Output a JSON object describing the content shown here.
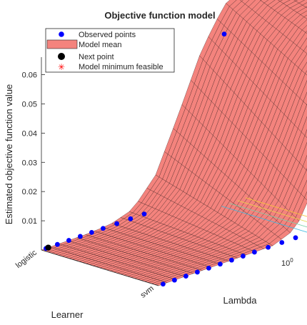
{
  "chart_data": {
    "type": "surface",
    "title": "Objective function model",
    "zlabel": "Estimated objective function value",
    "xlabel": "Learner",
    "ylabel": "Lambda",
    "ztick_values": [
      0.01,
      0.02,
      0.03,
      0.04,
      0.05,
      0.06
    ],
    "ztick_labels": [
      "0.01",
      "0.02",
      "0.03",
      "0.04",
      "0.05",
      "0.06"
    ],
    "zlim": [
      0,
      0.066
    ],
    "learner_categories": [
      "logistic",
      "svm"
    ],
    "lambda_tick": {
      "base": "10",
      "exponent": "0"
    },
    "lambda_scale": "log",
    "legend": {
      "placement": "top-left",
      "entries": [
        {
          "label": "Observed points",
          "marker": "blue-dot",
          "color": "#0000ff"
        },
        {
          "label": "Model mean",
          "marker": "salmon-rect",
          "color": "#f4837d"
        },
        {
          "label": "Next point",
          "marker": "black-dot",
          "color": "#000000"
        },
        {
          "label": "Model minimum feasible",
          "marker": "red-asterisk",
          "color": "#ff0000"
        }
      ]
    },
    "colors": {
      "surface": "#f4837d",
      "surface_edge": "#2a1212",
      "observed": "#0000ff",
      "contour": [
        "#3cb9e0",
        "#7ad0a8",
        "#e8d54a",
        "#f6c33c"
      ]
    },
    "model_mean_profile_logistic": {
      "lambda_fraction": [
        0.0,
        0.1,
        0.2,
        0.3,
        0.4,
        0.5,
        0.6,
        0.7,
        0.8,
        0.9,
        1.0
      ],
      "value": [
        0.0,
        0.0,
        0.0,
        0.0005,
        0.003,
        0.012,
        0.03,
        0.049,
        0.062,
        0.066,
        0.066
      ]
    },
    "model_mean_profile_svm": {
      "lambda_fraction": [
        0.0,
        0.1,
        0.2,
        0.3,
        0.4,
        0.5,
        0.6,
        0.7,
        0.8,
        0.9,
        1.0
      ],
      "value": [
        0.0,
        0.0,
        0.0,
        0.0,
        0.0,
        0.0,
        0.003,
        0.018,
        0.038,
        0.051,
        0.056
      ]
    },
    "observed_points": [
      {
        "learner": "logistic",
        "lambda_fraction": 0.02,
        "value": 0.0
      },
      {
        "learner": "logistic",
        "lambda_fraction": 0.07,
        "value": 0.0
      },
      {
        "learner": "logistic",
        "lambda_fraction": 0.12,
        "value": 0.0
      },
      {
        "learner": "logistic",
        "lambda_fraction": 0.17,
        "value": 0.0
      },
      {
        "learner": "logistic",
        "lambda_fraction": 0.22,
        "value": 0.0
      },
      {
        "learner": "logistic",
        "lambda_fraction": 0.27,
        "value": 0.0
      },
      {
        "learner": "logistic",
        "lambda_fraction": 0.33,
        "value": 0.0
      },
      {
        "learner": "logistic",
        "lambda_fraction": 0.39,
        "value": 0.0
      },
      {
        "learner": "logistic",
        "lambda_fraction": 0.45,
        "value": 0.0
      },
      {
        "learner": "logistic",
        "lambda_fraction": 0.8,
        "value": 0.052
      },
      {
        "learner": "svm",
        "lambda_fraction": 0.02,
        "value": 0.0
      },
      {
        "learner": "svm",
        "lambda_fraction": 0.07,
        "value": 0.0
      },
      {
        "learner": "svm",
        "lambda_fraction": 0.12,
        "value": 0.0
      },
      {
        "learner": "svm",
        "lambda_fraction": 0.17,
        "value": 0.0
      },
      {
        "learner": "svm",
        "lambda_fraction": 0.22,
        "value": 0.0
      },
      {
        "learner": "svm",
        "lambda_fraction": 0.27,
        "value": 0.0
      },
      {
        "learner": "svm",
        "lambda_fraction": 0.32,
        "value": 0.0
      },
      {
        "learner": "svm",
        "lambda_fraction": 0.37,
        "value": 0.0
      },
      {
        "learner": "svm",
        "lambda_fraction": 0.42,
        "value": 0.0
      },
      {
        "learner": "svm",
        "lambda_fraction": 0.48,
        "value": 0.0
      },
      {
        "learner": "svm",
        "lambda_fraction": 0.54,
        "value": 0.0
      },
      {
        "learner": "svm",
        "lambda_fraction": 0.6,
        "value": 0.0
      },
      {
        "learner": "svm",
        "lambda_fraction": 0.97,
        "value": 0.049
      }
    ],
    "next_point": {
      "learner": "logistic",
      "lambda_fraction": 0.03,
      "value": 0.0
    },
    "grid": false
  }
}
